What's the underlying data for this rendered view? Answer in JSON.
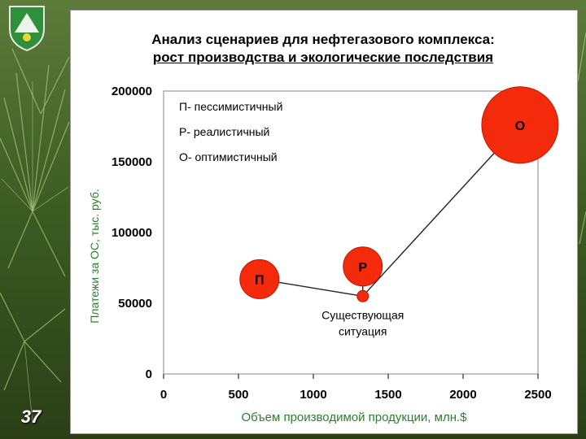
{
  "slide": {
    "number": "37",
    "title_line1": "Анализ сценариев для нефтегазового комплекса:",
    "title_line2": "рост производства и экологические последствия"
  },
  "colors": {
    "bubble": "#f42a0c",
    "bubble_edge": "#c01a00",
    "line": "#222222",
    "accent": "#2e7d32"
  },
  "chart_data": {
    "type": "scatter",
    "xlabel": "Объем производимой продукции, млн.$",
    "ylabel": "Платежи за ОС, тыс. руб.",
    "xlim": [
      0,
      2500
    ],
    "ylim": [
      0,
      200000
    ],
    "xticks": [
      0,
      500,
      1000,
      1500,
      2000,
      2500
    ],
    "yticks": [
      0,
      50000,
      100000,
      150000,
      200000
    ],
    "xtick_labels": [
      "0",
      "500",
      "1000",
      "1500",
      "2000",
      "2500"
    ],
    "ytick_labels": [
      "0",
      "50000",
      "100000",
      "150000",
      "200000"
    ],
    "legend": [
      "П- пессимистичный",
      "Р- реалистичный",
      "О- оптимистичный"
    ],
    "grid": false,
    "points": [
      {
        "label": "П",
        "x": 640,
        "y": 67000,
        "size": "medium"
      },
      {
        "label": "Р",
        "x": 1330,
        "y": 76000,
        "size": "medium"
      },
      {
        "label": "О",
        "x": 2380,
        "y": 176000,
        "size": "large"
      },
      {
        "label": "Существующая ситуация",
        "x": 1330,
        "y": 55000,
        "size": "small"
      }
    ],
    "connections": [
      [
        "П",
        "Существующая ситуация"
      ],
      [
        "Существующая ситуация",
        "Р"
      ],
      [
        "Существующая ситуация",
        "О"
      ]
    ]
  }
}
